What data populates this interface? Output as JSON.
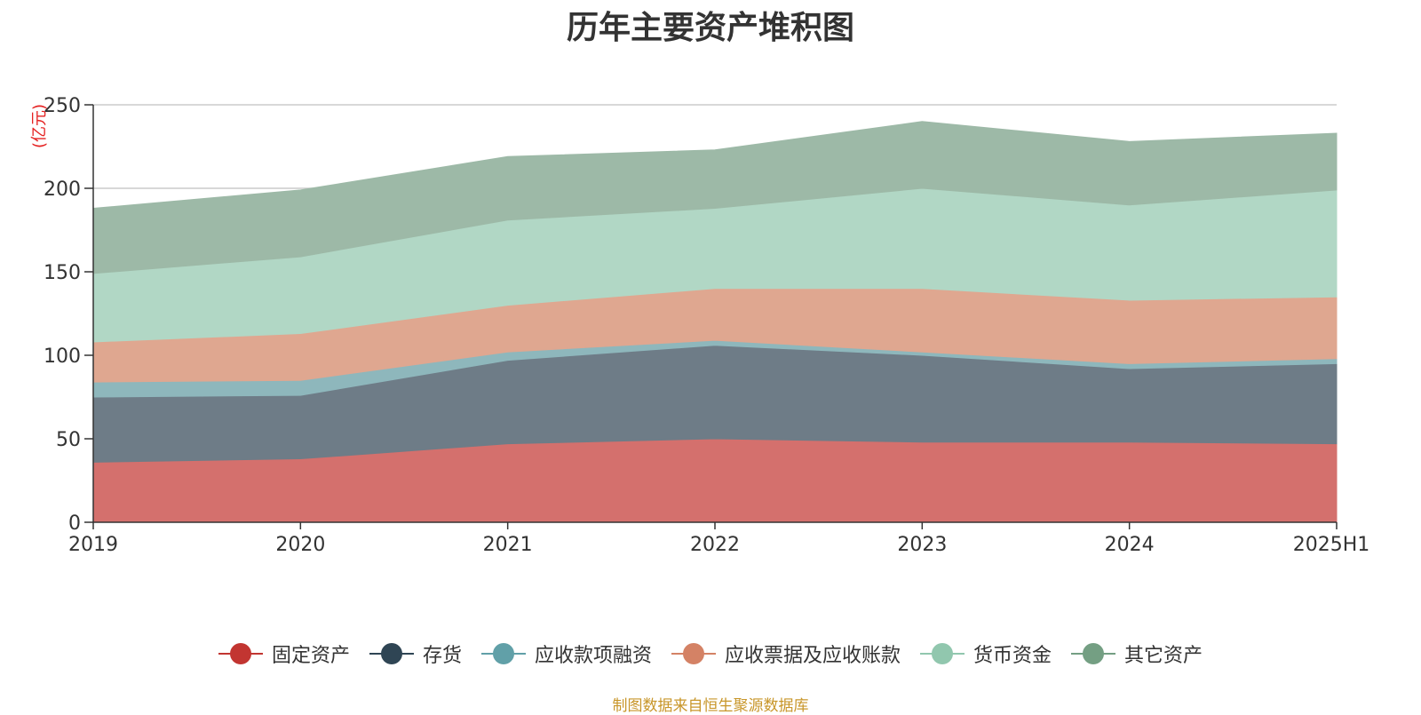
{
  "title": "历年主要资产堆积图",
  "source_note": "制图数据来自恒生聚源数据库",
  "colors": {
    "title": "#333333",
    "unit": "#e52222",
    "source": "#c8962a"
  },
  "chart_data": {
    "type": "area",
    "stacked": true,
    "title": "历年主要资产堆积图",
    "ylabel": "(亿元)",
    "xlabel": "",
    "categories": [
      "2019",
      "2020",
      "2021",
      "2022",
      "2023",
      "2024",
      "2025H1"
    ],
    "ylim": [
      0,
      250
    ],
    "yticks": [
      0,
      50,
      100,
      150,
      200,
      250
    ],
    "grid": true,
    "legend_position": "bottom",
    "series": [
      {
        "name": "固定资产",
        "legend_color": "#c23531",
        "fill_color": "#d4706d",
        "values": [
          36,
          38,
          47,
          50,
          48,
          48,
          47
        ]
      },
      {
        "name": "存货",
        "legend_color": "#2f4554",
        "fill_color": "#6e7c87",
        "values": [
          39,
          38,
          50,
          56,
          52,
          44,
          48
        ]
      },
      {
        "name": "应收款项融资",
        "legend_color": "#61a0a8",
        "fill_color": "#8eb7bc",
        "values": [
          9,
          9,
          5,
          3,
          2,
          3,
          3
        ]
      },
      {
        "name": "应收票据及应收账款",
        "legend_color": "#d48265",
        "fill_color": "#dfa790",
        "values": [
          24,
          28,
          28,
          31,
          38,
          38,
          37
        ]
      },
      {
        "name": "货币资金",
        "legend_color": "#91c7ae",
        "fill_color": "#b1d7c5",
        "values": [
          41,
          46,
          51,
          48,
          60,
          57,
          64
        ]
      },
      {
        "name": "其它资产",
        "legend_color": "#749f83",
        "fill_color": "#9db9a7",
        "values": [
          39,
          40,
          38,
          35,
          40,
          38,
          34
        ]
      }
    ]
  }
}
